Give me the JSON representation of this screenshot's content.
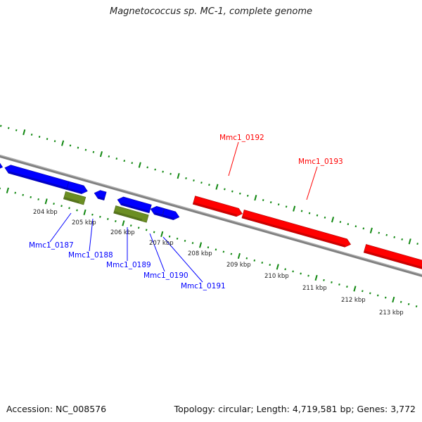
{
  "title": "Magnetococcus sp. MC-1, complete genome",
  "footer": {
    "accession": "Accession: NC_008576",
    "topology": "Topology: circular; Length: 4,719,581 bp; Genes: 3,772"
  },
  "colors": {
    "forward": "#ff0000",
    "reverse": "#0000ff",
    "rna": "#6b8e23",
    "backbone": "#808080",
    "ticks": "#118811"
  },
  "chart_data": {
    "type": "genome-map",
    "kbp_range": [
      202,
      215
    ],
    "kbp_labels": [
      "204 kbp",
      "205 kbp",
      "206 kbp",
      "207 kbp",
      "208 kbp",
      "209 kbp",
      "210 kbp",
      "211 kbp",
      "212 kbp",
      "213 kbp"
    ],
    "kbp_values": [
      204,
      205,
      206,
      207,
      208,
      209,
      210,
      211,
      212,
      213
    ],
    "genes": [
      {
        "start": 202.3,
        "end": 202.72,
        "track": "reverse",
        "dir": "right"
      },
      {
        "start": 202.78,
        "end": 204.41,
        "track": "reverse",
        "dir": "left"
      },
      {
        "start": 204.41,
        "end": 204.92,
        "track": "reverse",
        "dir": "right"
      },
      {
        "start": 204.4,
        "end": 204.92,
        "track": "rna",
        "dir": "none"
      },
      {
        "start": 205.1,
        "end": 205.38,
        "track": "reverse",
        "dir": "left"
      },
      {
        "start": 205.7,
        "end": 206.55,
        "track": "reverse",
        "dir": "left"
      },
      {
        "start": 205.7,
        "end": 206.55,
        "track": "rna",
        "dir": "none"
      },
      {
        "start": 206.56,
        "end": 206.88,
        "track": "reverse",
        "dir": "left"
      },
      {
        "start": 206.89,
        "end": 207.3,
        "track": "reverse",
        "dir": "right"
      },
      {
        "start": 207.54,
        "end": 208.79,
        "track": "forward",
        "dir": "right"
      },
      {
        "start": 208.81,
        "end": 211.6,
        "track": "forward",
        "dir": "right"
      },
      {
        "start": 211.97,
        "end": 215.5,
        "track": "forward",
        "dir": "right"
      }
    ],
    "gene_labels": [
      {
        "name": "Mmc1_0187",
        "color": "#0000ff"
      },
      {
        "name": "Mmc1_0188",
        "color": "#0000ff"
      },
      {
        "name": "Mmc1_0189",
        "color": "#0000ff"
      },
      {
        "name": "Mmc1_0190",
        "color": "#0000ff"
      },
      {
        "name": "Mmc1_0191",
        "color": "#0000ff"
      },
      {
        "name": "Mmc1_0192",
        "color": "#ff0000"
      },
      {
        "name": "Mmc1_0193",
        "color": "#ff0000"
      }
    ]
  }
}
